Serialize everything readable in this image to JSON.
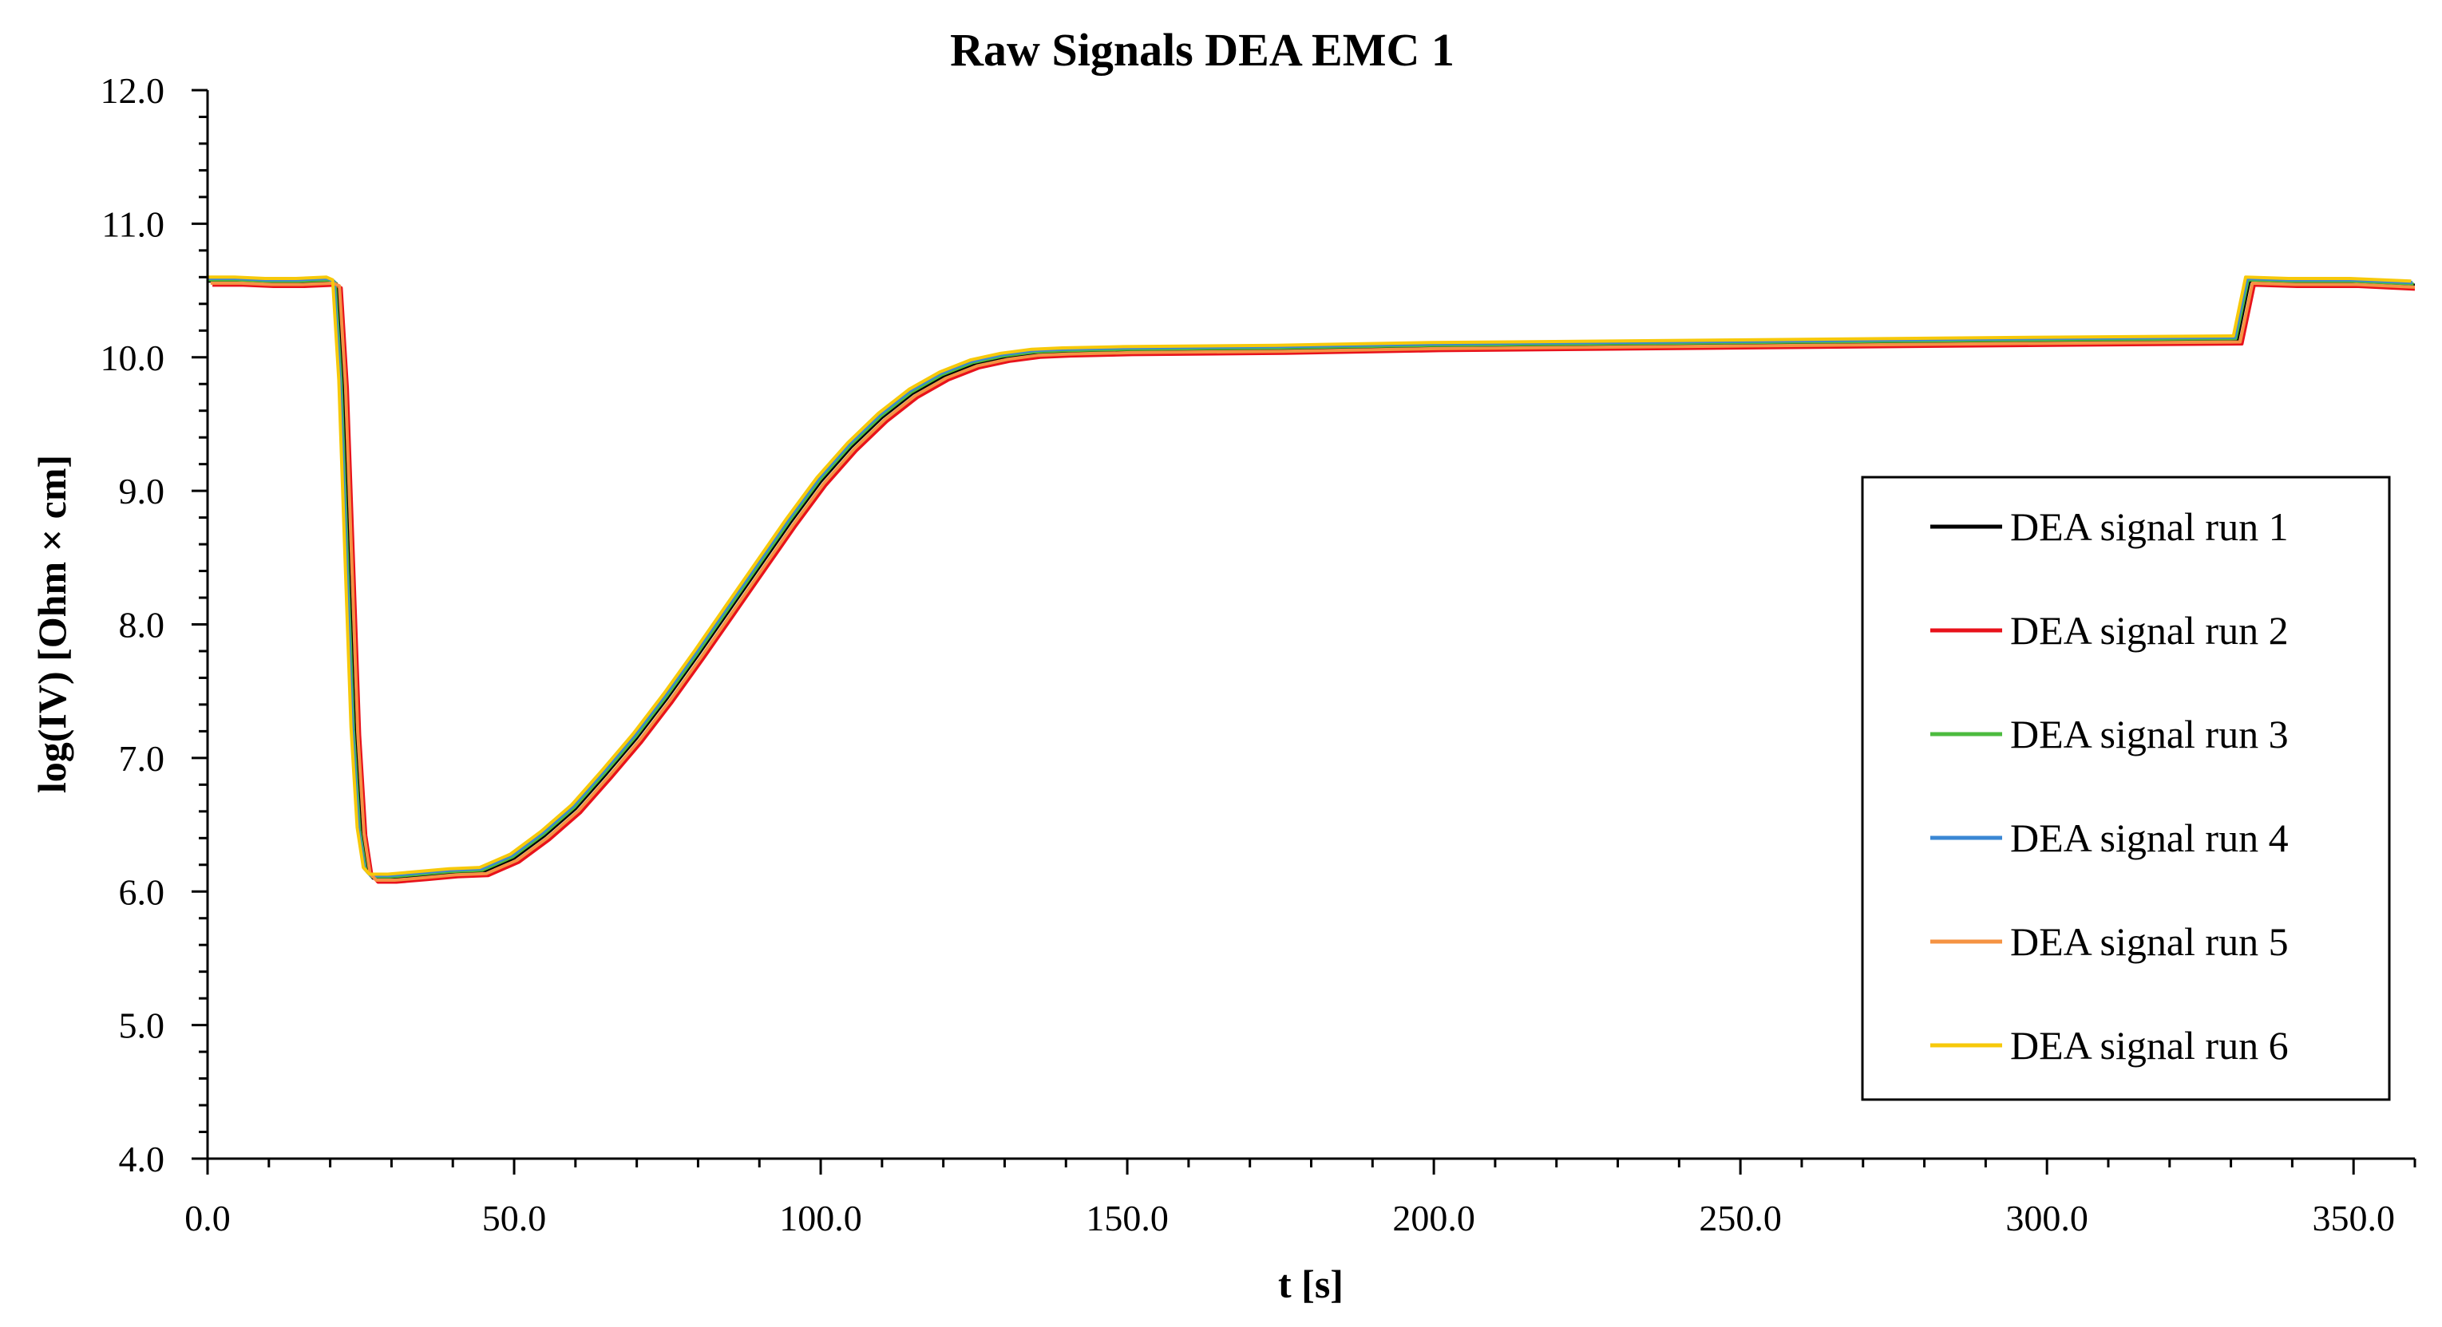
{
  "chart_data": {
    "type": "line",
    "title": "Raw Signals DEA EMC 1",
    "xlabel": "t [s]",
    "ylabel": "log(IV) [Ohm × cm]",
    "xlim": [
      0,
      360
    ],
    "ylim": [
      4,
      12
    ],
    "xticks": [
      0,
      50,
      100,
      150,
      200,
      250,
      300,
      350
    ],
    "xtick_labels": [
      "0.0",
      "50.0",
      "100.0",
      "150.0",
      "200.0",
      "250.0",
      "300.0",
      "350.0"
    ],
    "yticks": [
      4,
      5,
      6,
      7,
      8,
      9,
      10,
      11,
      12
    ],
    "ytick_labels": [
      "4.0",
      "5.0",
      "6.0",
      "7.0",
      "8.0",
      "9.0",
      "10.0",
      "11.0",
      "12.0"
    ],
    "x_minor_step": 10,
    "y_minor_step": 0.2,
    "grid": false,
    "legend_position": "right",
    "base_curve": {
      "x": [
        0,
        5,
        10,
        15,
        20,
        21,
        22,
        23,
        24,
        25,
        26,
        27,
        30,
        35,
        40,
        45,
        50,
        55,
        60,
        65,
        70,
        75,
        80,
        85,
        90,
        95,
        100,
        105,
        110,
        115,
        120,
        125,
        130,
        135,
        140,
        150,
        175,
        200,
        250,
        300,
        331,
        332,
        333,
        340,
        350,
        360
      ],
      "y": [
        10.57,
        10.57,
        10.56,
        10.56,
        10.57,
        10.55,
        9.8,
        8.5,
        7.2,
        6.45,
        6.15,
        6.1,
        6.1,
        6.12,
        6.14,
        6.15,
        6.25,
        6.42,
        6.62,
        6.88,
        7.15,
        7.45,
        7.77,
        8.1,
        8.43,
        8.76,
        9.07,
        9.33,
        9.55,
        9.73,
        9.86,
        9.95,
        10.0,
        10.03,
        10.04,
        10.05,
        10.06,
        10.08,
        10.1,
        10.12,
        10.13,
        10.35,
        10.57,
        10.56,
        10.56,
        10.54
      ]
    },
    "series": [
      {
        "name": "DEA signal run 1",
        "color": "#000000",
        "x_shift": 0.0,
        "y_shift": 0.0
      },
      {
        "name": "DEA signal run 2",
        "color": "#e8121b",
        "x_shift": 0.8,
        "y_shift": -0.03
      },
      {
        "name": "DEA signal run 3",
        "color": "#4cbb3f",
        "x_shift": -0.2,
        "y_shift": 0.01
      },
      {
        "name": "DEA signal run 4",
        "color": "#3a87d4",
        "x_shift": -0.4,
        "y_shift": 0.02
      },
      {
        "name": "DEA signal run 5",
        "color": "#f59343",
        "x_shift": 0.5,
        "y_shift": -0.015
      },
      {
        "name": "DEA signal run 6",
        "color": "#f7c90a",
        "x_shift": -0.6,
        "y_shift": 0.03
      }
    ]
  }
}
